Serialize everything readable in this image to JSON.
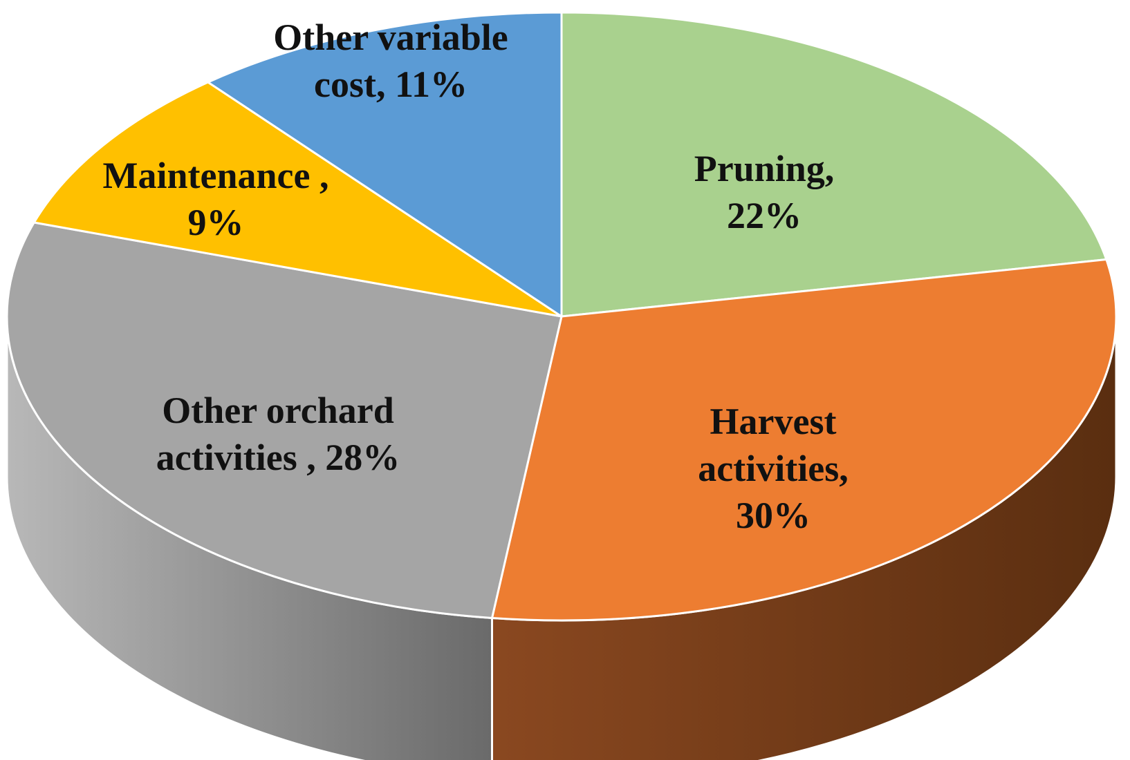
{
  "chart_data": {
    "type": "pie",
    "style": "3d",
    "title": "",
    "slices": [
      {
        "label": "Pruning",
        "value": 22,
        "display": [
          "Pruning,",
          "22%"
        ],
        "color": "#A9D18E",
        "side_color": "#6E8F58"
      },
      {
        "label": "Harvest activities",
        "value": 30,
        "display": [
          "Harvest",
          "activities,",
          "30%"
        ],
        "color": "#ED7D31",
        "side_color": "#7A3C14"
      },
      {
        "label": "Other orchard activities",
        "value": 28,
        "display": [
          "Other orchard",
          "activities , 28%"
        ],
        "color": "#A5A5A5",
        "side_color": "#6E6E6E"
      },
      {
        "label": "Maintenance",
        "value": 9,
        "display": [
          "Maintenance ,",
          "9%"
        ],
        "color": "#FFC000",
        "side_color": "#A07800"
      },
      {
        "label": "Other variable cost",
        "value": 11,
        "display": [
          "Other variable",
          "cost, 11%"
        ],
        "color": "#5B9BD5",
        "side_color": "#3A6590"
      }
    ],
    "start_angle_deg": -90,
    "direction": "clockwise",
    "legend": "none"
  }
}
